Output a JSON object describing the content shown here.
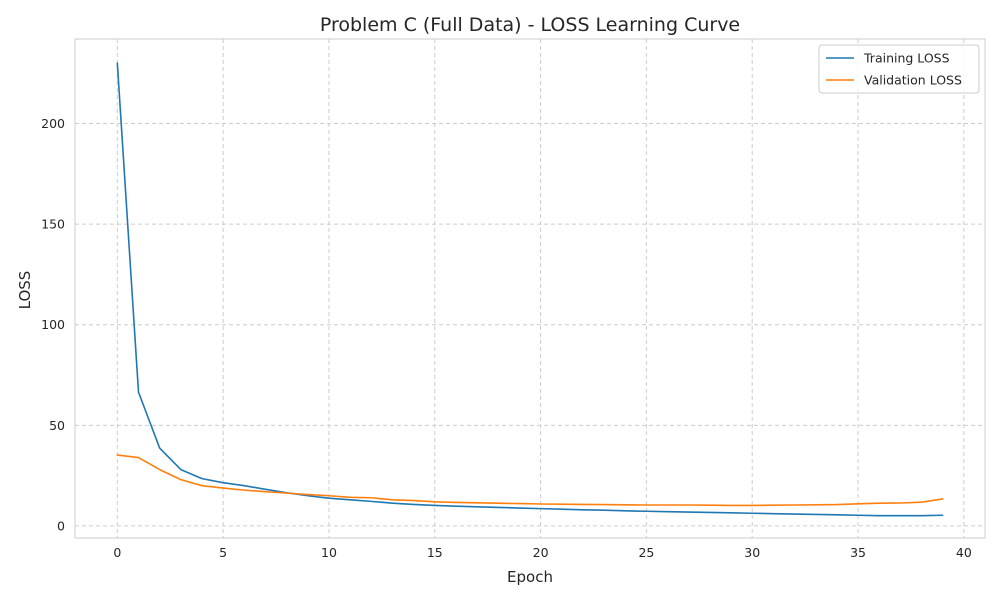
{
  "chart_data": {
    "type": "line",
    "title": "Problem C (Full Data) - LOSS Learning Curve",
    "xlabel": "Epoch",
    "ylabel": "LOSS",
    "xlim": [
      -2,
      41
    ],
    "ylim": [
      -6,
      242
    ],
    "xticks": [
      0,
      5,
      10,
      15,
      20,
      25,
      30,
      35,
      40
    ],
    "yticks": [
      0,
      50,
      100,
      150,
      200
    ],
    "grid": true,
    "legend_position": "top-right",
    "x": [
      0,
      1,
      2,
      3,
      4,
      5,
      6,
      7,
      8,
      9,
      10,
      11,
      12,
      13,
      14,
      15,
      16,
      17,
      18,
      19,
      20,
      21,
      22,
      23,
      24,
      25,
      26,
      27,
      28,
      29,
      30,
      31,
      32,
      33,
      34,
      35,
      36,
      37,
      38,
      39
    ],
    "series": [
      {
        "name": "Training LOSS",
        "color": "#1f77b4",
        "values": [
          230.0,
          66.5,
          38.7,
          28.0,
          23.5,
          21.5,
          20.0,
          18.2,
          16.5,
          15.0,
          13.8,
          13.0,
          12.2,
          11.3,
          10.7,
          10.2,
          9.8,
          9.5,
          9.2,
          8.9,
          8.6,
          8.3,
          8.0,
          7.8,
          7.5,
          7.3,
          7.1,
          6.9,
          6.7,
          6.5,
          6.3,
          6.1,
          5.9,
          5.7,
          5.5,
          5.3,
          5.1,
          5.1,
          5.1,
          5.3
        ]
      },
      {
        "name": "Validation LOSS",
        "color": "#ff7f0e",
        "values": [
          35.2,
          34.0,
          28.0,
          23.0,
          20.0,
          18.8,
          17.8,
          17.0,
          16.3,
          15.6,
          15.0,
          14.2,
          14.0,
          13.0,
          12.6,
          12.0,
          11.7,
          11.5,
          11.3,
          11.1,
          10.9,
          10.8,
          10.7,
          10.6,
          10.5,
          10.4,
          10.4,
          10.4,
          10.3,
          10.2,
          10.2,
          10.3,
          10.4,
          10.5,
          10.6,
          11.0,
          11.3,
          11.4,
          11.8,
          13.4
        ]
      }
    ]
  }
}
